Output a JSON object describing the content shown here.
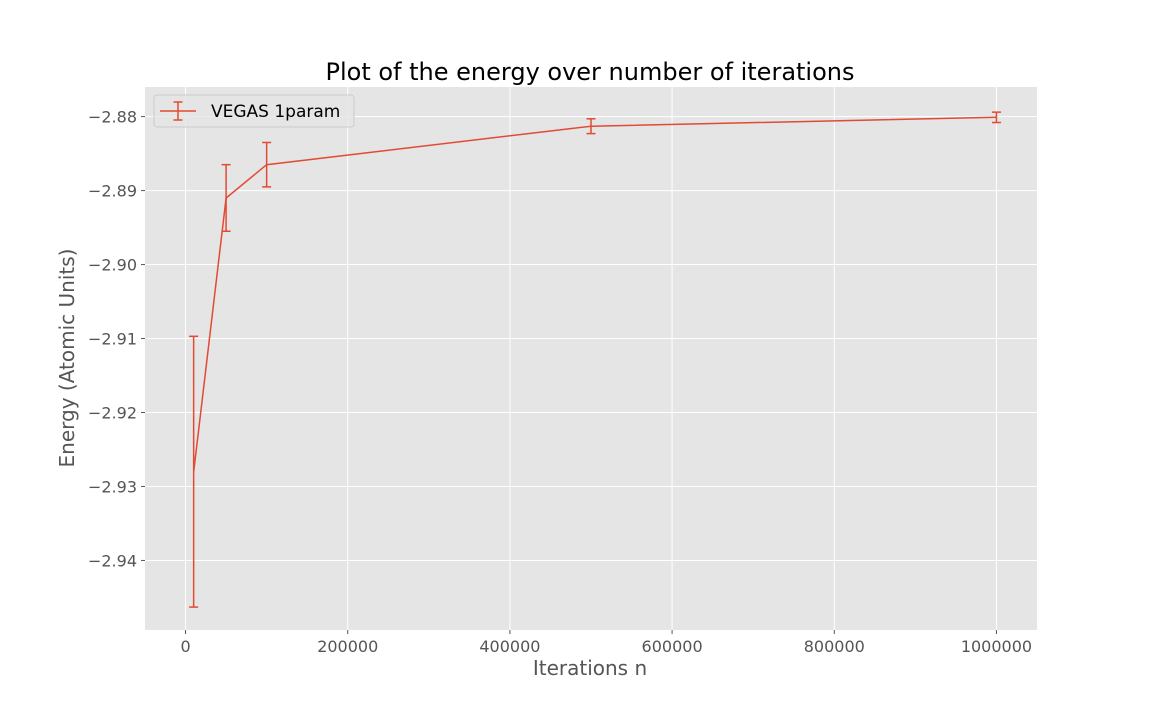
{
  "chart_data": {
    "type": "line",
    "title": "Plot of the energy over number of iterations",
    "xlabel": "Iterations n",
    "ylabel": "Energy (Atomic Units)",
    "xlim": [
      -50000,
      1050000
    ],
    "ylim": [
      -2.9494,
      -2.876
    ],
    "x_ticks": [
      0,
      200000,
      400000,
      600000,
      800000,
      1000000
    ],
    "x_tick_labels": [
      "0",
      "200000",
      "400000",
      "600000",
      "800000",
      "1000000"
    ],
    "y_ticks": [
      -2.88,
      -2.89,
      -2.9,
      -2.91,
      -2.92,
      -2.93,
      -2.94
    ],
    "y_tick_labels": [
      "−2.88",
      "−2.89",
      "−2.90",
      "−2.91",
      "−2.92",
      "−2.93",
      "−2.94"
    ],
    "grid": true,
    "legend_position": "top-left",
    "series": [
      {
        "name": "VEGAS 1param",
        "color": "#E24A33",
        "x": [
          10000,
          50000,
          100000,
          500000,
          1000000
        ],
        "y": [
          -2.928,
          -2.891,
          -2.8865,
          -2.8813,
          -2.8801
        ],
        "yerr": [
          0.0183,
          0.0045,
          0.003,
          0.001,
          0.0007
        ]
      }
    ],
    "style": {
      "plot_background": "#E5E5E5",
      "grid_color": "#FFFFFF",
      "tick_color": "#555555",
      "title_color": "#000000"
    }
  }
}
